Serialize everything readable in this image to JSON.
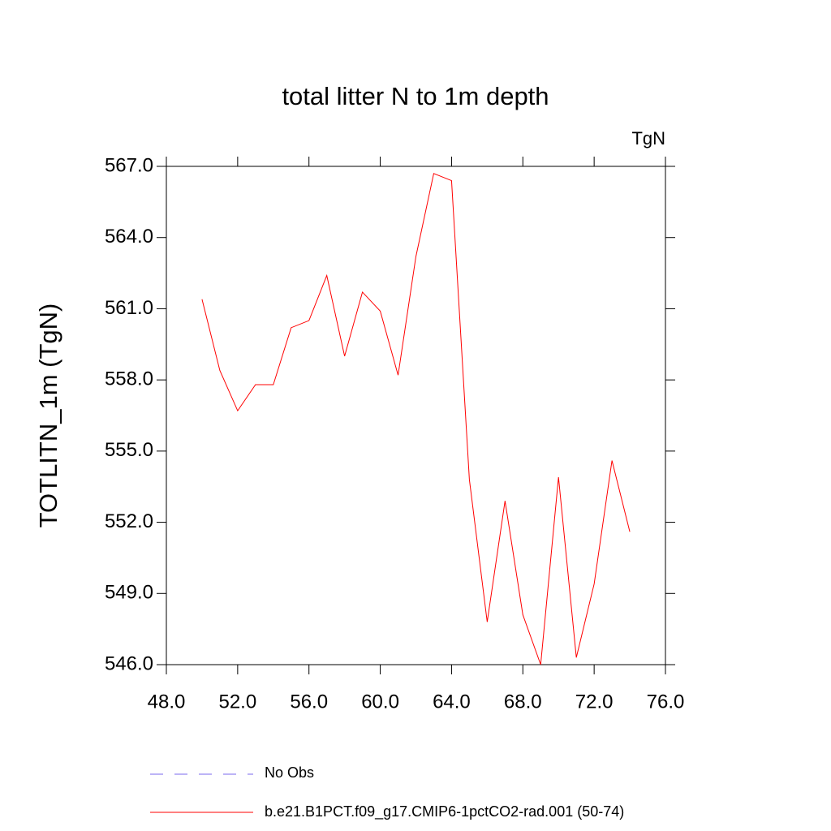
{
  "chart_data": {
    "type": "line",
    "title": "total litter N to 1m depth",
    "units": "TgN",
    "ylabel": "TOTLITN_1m  (TgN)",
    "x": [
      50,
      51,
      52,
      53,
      54,
      55,
      56,
      57,
      58,
      59,
      60,
      61,
      62,
      63,
      64,
      65,
      66,
      67,
      68,
      69,
      70,
      71,
      72,
      73,
      74
    ],
    "series": [
      {
        "name": "b.e21.B1PCT.f09_g17.CMIP6-1pctCO2-rad.001 (50-74)",
        "color": "#ff0000",
        "values": [
          561.4,
          558.4,
          556.7,
          557.8,
          557.8,
          560.2,
          560.5,
          562.4,
          559.0,
          561.7,
          560.9,
          558.2,
          563.2,
          566.7,
          566.4,
          553.8,
          547.8,
          552.9,
          548.1,
          546.0,
          553.9,
          546.3,
          549.4,
          554.6,
          551.6
        ]
      }
    ],
    "reference_entry": {
      "name": "No Obs",
      "color": "#7b68ee",
      "dashed": true
    },
    "xlim": [
      48,
      76
    ],
    "xticks": [
      {
        "value": 48,
        "label": "48.0"
      },
      {
        "value": 52,
        "label": "52.0"
      },
      {
        "value": 56,
        "label": "56.0"
      },
      {
        "value": 60,
        "label": "60.0"
      },
      {
        "value": 64,
        "label": "64.0"
      },
      {
        "value": 68,
        "label": "68.0"
      },
      {
        "value": 72,
        "label": "72.0"
      },
      {
        "value": 76,
        "label": "76.0"
      }
    ],
    "ylim": [
      546,
      567
    ],
    "yticks": [
      {
        "value": 546,
        "label": "546.0"
      },
      {
        "value": 549,
        "label": "549.0"
      },
      {
        "value": 552,
        "label": "552.0"
      },
      {
        "value": 555,
        "label": "555.0"
      },
      {
        "value": 558,
        "label": "558.0"
      },
      {
        "value": 561,
        "label": "561.0"
      },
      {
        "value": 564,
        "label": "564.0"
      },
      {
        "value": 567,
        "label": "567.0"
      }
    ]
  }
}
